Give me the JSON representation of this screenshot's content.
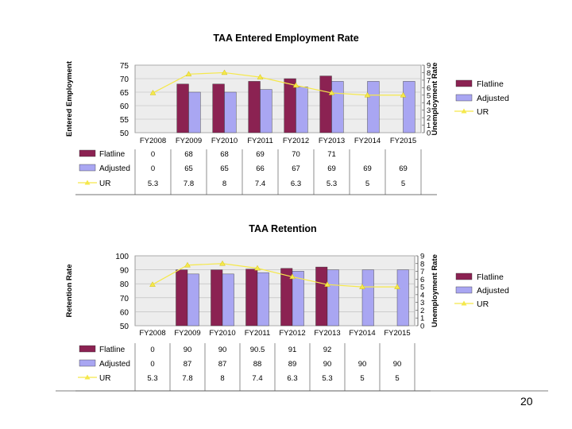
{
  "page_number": "20",
  "colors": {
    "flatline": "#8B2252",
    "adjusted": "#A9A6F2",
    "ur_line": "#F5E84B",
    "plot_bg": "#EDEDED",
    "grid": "#B8B8B8"
  },
  "chart_data": [
    {
      "type": "bar",
      "title": "TAA Entered Employment Rate",
      "ylabel": "Entered Employment",
      "y2label": "Unemployment Rate",
      "categories": [
        "FY2008",
        "FY2009",
        "FY2010",
        "FY2011",
        "FY2012",
        "FY2013",
        "FY2014",
        "FY2015"
      ],
      "ylim": [
        50,
        75
      ],
      "yticks": [
        50,
        55,
        60,
        65,
        70,
        75
      ],
      "y2lim": [
        0,
        9
      ],
      "y2ticks": [
        0,
        1,
        2,
        3,
        4,
        5,
        6,
        7,
        8,
        9
      ],
      "series": [
        {
          "name": "Flatline",
          "kind": "bar",
          "values": [
            0,
            68,
            68,
            69,
            70,
            71,
            null,
            null
          ]
        },
        {
          "name": "Adjusted",
          "kind": "bar",
          "values": [
            0,
            65,
            65,
            66,
            67,
            69,
            69,
            69
          ]
        },
        {
          "name": "UR",
          "kind": "line",
          "axis": "secondary",
          "values": [
            5.3,
            7.8,
            8,
            7.4,
            6.3,
            5.3,
            5,
            5
          ]
        }
      ],
      "table": [
        {
          "label": "Flatline",
          "cells": [
            "0",
            "68",
            "68",
            "69",
            "70",
            "71",
            "",
            ""
          ]
        },
        {
          "label": "Adjusted",
          "cells": [
            "0",
            "65",
            "65",
            "66",
            "67",
            "69",
            "69",
            "69"
          ]
        },
        {
          "label": "UR",
          "cells": [
            "5.3",
            "7.8",
            "8",
            "7.4",
            "6.3",
            "5.3",
            "5",
            "5"
          ]
        }
      ],
      "legend": [
        "Flatline",
        "Adjusted",
        "UR"
      ]
    },
    {
      "type": "bar",
      "title": "TAA Retention",
      "ylabel": "Retention Rate",
      "y2label": "Unemployment Rate",
      "categories": [
        "FY2008",
        "FY2009",
        "FY2010",
        "FY2011",
        "FY2012",
        "FY2013",
        "FY2014",
        "FY2015"
      ],
      "ylim": [
        50,
        100
      ],
      "yticks": [
        50,
        60,
        70,
        80,
        90,
        100
      ],
      "y2lim": [
        0,
        9
      ],
      "y2ticks": [
        0,
        1,
        2,
        3,
        4,
        5,
        6,
        7,
        8,
        9
      ],
      "series": [
        {
          "name": "Flatline",
          "kind": "bar",
          "values": [
            0,
            90,
            90,
            90.5,
            91,
            92,
            null,
            null
          ]
        },
        {
          "name": "Adjusted",
          "kind": "bar",
          "values": [
            0,
            87,
            87,
            88,
            89,
            90,
            90,
            90
          ]
        },
        {
          "name": "UR",
          "kind": "line",
          "axis": "secondary",
          "values": [
            5.3,
            7.8,
            8,
            7.4,
            6.3,
            5.3,
            5,
            5
          ]
        }
      ],
      "table": [
        {
          "label": "Flatline",
          "cells": [
            "0",
            "90",
            "90",
            "90.5",
            "91",
            "92",
            "",
            ""
          ]
        },
        {
          "label": "Adjusted",
          "cells": [
            "0",
            "87",
            "87",
            "88",
            "89",
            "90",
            "90",
            "90"
          ]
        },
        {
          "label": "UR",
          "cells": [
            "5.3",
            "7.8",
            "8",
            "7.4",
            "6.3",
            "5.3",
            "5",
            "5"
          ]
        }
      ],
      "legend": [
        "Flatline",
        "Adjusted",
        "UR"
      ]
    }
  ]
}
